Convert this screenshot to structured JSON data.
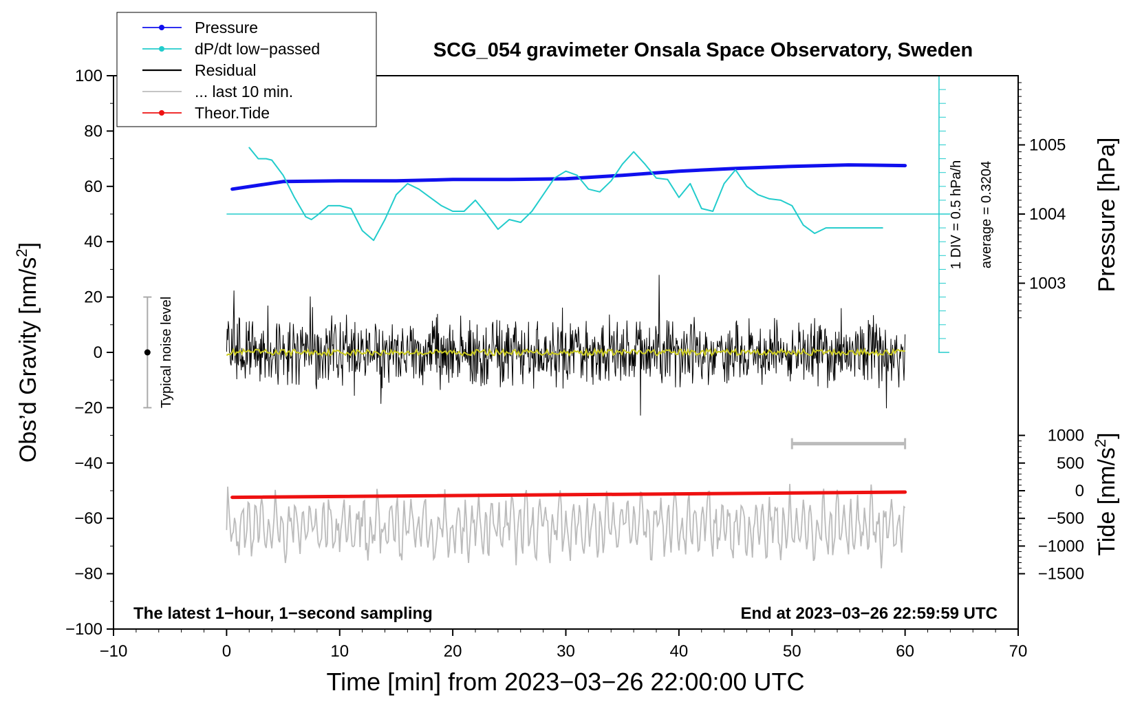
{
  "chart_data": {
    "type": "line",
    "title": "SCG_054 gravimeter Onsala Space Observatory, Sweden",
    "xlabel": "Time [min] from 2023−03−26 22:00:00 UTC",
    "ylabel_left": "Obs’d Gravity [nm/s",
    "ylabel_left_sup": "2",
    "ylabel_left_end": "]",
    "ylabel_right_pressure": "Pressure [hPa]",
    "ylabel_right_tide": "Tide [nm/s",
    "ylabel_right_tide_sup": "2",
    "ylabel_right_tide_end": "]",
    "xlim": [
      -10,
      70
    ],
    "ylim": [
      -100,
      100
    ],
    "x_ticks": [
      "−10",
      "0",
      "10",
      "20",
      "30",
      "40",
      "50",
      "60",
      "70"
    ],
    "x_tick_values": [
      -10,
      0,
      10,
      20,
      30,
      40,
      50,
      60,
      70
    ],
    "y_ticks": [
      "100",
      "80",
      "60",
      "40",
      "20",
      "0",
      "−20",
      "−40",
      "−60",
      "−80",
      "−100"
    ],
    "y_tick_values": [
      100,
      80,
      60,
      40,
      20,
      0,
      -20,
      -40,
      -60,
      -80,
      -100
    ],
    "pressure_ticks": [
      "1005",
      "1004",
      "1003"
    ],
    "pressure_tick_values": [
      1005,
      1004,
      1003
    ],
    "pressure_mapping": {
      "p1": 1004,
      "g1": 50,
      "gravity_per_hPa": 25
    },
    "tide_ticks": [
      "1000",
      "500",
      "0",
      "−500",
      "−1000",
      "−1500"
    ],
    "tide_tick_values": [
      1000,
      500,
      0,
      -500,
      -1000,
      -1500
    ],
    "tide_mapping": {
      "t1": 0,
      "g1": -50,
      "gravity_per_unit": 0.02
    },
    "legend": [
      {
        "label": "Pressure",
        "color": "#1010ee",
        "marker": true
      },
      {
        "label": "dP/dt low−passed",
        "color": "#22cccc",
        "marker": true
      },
      {
        "label": "Residual",
        "color": "#000000",
        "marker": false
      },
      {
        "label": "... last 10 min.",
        "color": "#bbbbbb",
        "marker": false
      },
      {
        "label": "Theor.Tide",
        "color": "#ee1111",
        "marker": true
      }
    ],
    "footer_left": "The latest 1−hour, 1−second sampling",
    "footer_right": "End at 2023−03−26 22:59:59 UTC",
    "noise_label": "Typical noise level",
    "noise_level": {
      "x": -7,
      "center": 0,
      "half_range": 20
    },
    "dpdt_scale_label": "1 DIV = 0.5 hPa/h",
    "dpdt_average_label": "average = 0.3204",
    "dpdt_baseline": 50,
    "dpdt_scale_bar": {
      "x": 63,
      "y_from": 0,
      "y_to": 100,
      "div": 5
    },
    "last10_bar": {
      "x_from": 50,
      "x_to": 60,
      "y": -33
    },
    "series": [
      {
        "name": "Pressure",
        "color": "#1010ee",
        "x": [
          0.5,
          5,
          10,
          15,
          20,
          25,
          30,
          35,
          40,
          45,
          50,
          55,
          60
        ],
        "y": [
          1004.36,
          1004.47,
          1004.48,
          1004.48,
          1004.5,
          1004.5,
          1004.51,
          1004.56,
          1004.62,
          1004.66,
          1004.69,
          1004.71,
          1004.7
        ]
      },
      {
        "name": "dP/dt low−passed",
        "color": "#22cccc",
        "x": [
          2,
          2.8,
          3.5,
          4,
          5,
          6,
          7,
          7.5,
          8,
          9,
          10,
          11,
          12,
          13,
          14,
          15,
          16,
          17,
          18,
          19,
          20,
          21,
          22,
          23,
          24,
          25,
          26,
          27,
          28,
          29,
          30,
          31,
          32,
          33,
          34,
          35,
          36,
          37,
          38,
          39,
          40,
          41,
          42,
          43,
          44,
          45,
          46,
          47,
          48,
          49,
          50,
          51,
          52,
          53,
          54,
          55,
          56,
          57,
          58
        ],
        "y": [
          74,
          70,
          70,
          69.5,
          64,
          56,
          49,
          48,
          49.5,
          53,
          53,
          52,
          44,
          40.5,
          48,
          57,
          61,
          59,
          56,
          53,
          51,
          51,
          55,
          50,
          44.5,
          48,
          47,
          51,
          57,
          63,
          65.5,
          64,
          59,
          58,
          62,
          68,
          72.5,
          68,
          63,
          62.5,
          56,
          61,
          52,
          51,
          61,
          66,
          60,
          57,
          55.5,
          55,
          53,
          46,
          43,
          45,
          45,
          45,
          45,
          45,
          45
        ]
      },
      {
        "name": "Theor.Tide",
        "color": "#ee1111",
        "x": [
          0.5,
          60
        ],
        "y": [
          -120,
          -25
        ]
      }
    ],
    "residual": {
      "x_from": 0,
      "x_to": 60,
      "amplitude": 9,
      "smoothed_color": "#cccc22"
    },
    "last10": {
      "x_from": 0,
      "x_to": 60,
      "center": -63,
      "amplitude": 9
    }
  }
}
